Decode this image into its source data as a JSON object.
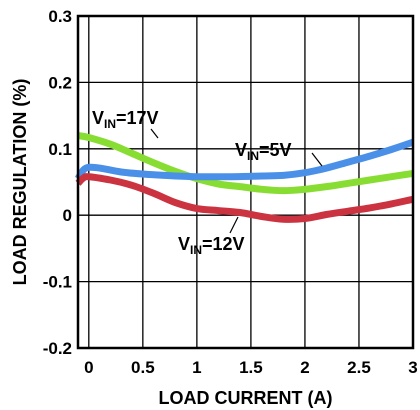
{
  "chart_data": {
    "type": "line",
    "title": "",
    "xlabel": "LOAD CURRENT (A)",
    "ylabel": "LOAD REGULATION (%)",
    "xlim": [
      -0.1,
      3.0
    ],
    "ylim": [
      -0.2,
      0.3
    ],
    "xticks": [
      0,
      0.5,
      1,
      1.5,
      2,
      2.5,
      3
    ],
    "xtick_labels": [
      "0",
      "0.5",
      "1",
      "1.5",
      "2",
      "2.5",
      "3"
    ],
    "yticks": [
      -0.2,
      -0.1,
      0,
      0.1,
      0.2,
      0.3
    ],
    "ytick_labels": [
      "-0.2",
      "-0.1",
      "0",
      "0.1",
      "0.2",
      "0.3"
    ],
    "grid": true,
    "legend": "none",
    "series": [
      {
        "name": "VIN=17V",
        "label_main": "V",
        "label_sub": "IN",
        "label_rest": "=17V",
        "color": "#88dd33",
        "x": [
          -0.1,
          0.0,
          0.2,
          0.4,
          0.6,
          0.8,
          1.0,
          1.2,
          1.4,
          1.6,
          1.8,
          2.0,
          2.2,
          2.4,
          2.6,
          2.8,
          3.0
        ],
        "y": [
          0.12,
          0.117,
          0.107,
          0.093,
          0.079,
          0.066,
          0.055,
          0.047,
          0.043,
          0.039,
          0.037,
          0.039,
          0.043,
          0.048,
          0.053,
          0.058,
          0.063
        ]
      },
      {
        "name": "VIN=5V",
        "label_main": "V",
        "label_sub": "IN",
        "label_rest": "=5V",
        "color": "#4a90e8",
        "x": [
          -0.1,
          -0.05,
          0.0,
          0.1,
          0.3,
          0.5,
          0.7,
          1.0,
          1.3,
          1.6,
          1.8,
          2.0,
          2.2,
          2.4,
          2.6,
          2.8,
          3.0
        ],
        "y": [
          0.055,
          0.068,
          0.072,
          0.071,
          0.065,
          0.062,
          0.06,
          0.058,
          0.058,
          0.059,
          0.06,
          0.064,
          0.071,
          0.08,
          0.089,
          0.099,
          0.11
        ]
      },
      {
        "name": "VIN=12V",
        "label_main": "V",
        "label_sub": "IN",
        "label_rest": "=12V",
        "color": "#cc3340",
        "x": [
          -0.1,
          -0.05,
          0.0,
          0.2,
          0.4,
          0.6,
          0.8,
          1.0,
          1.2,
          1.4,
          1.6,
          1.8,
          2.0,
          2.2,
          2.4,
          2.6,
          2.8,
          3.0
        ],
        "y": [
          0.048,
          0.056,
          0.058,
          0.053,
          0.045,
          0.033,
          0.019,
          0.01,
          0.007,
          0.004,
          -0.002,
          -0.006,
          -0.005,
          0.001,
          0.006,
          0.011,
          0.017,
          0.024
        ]
      }
    ]
  }
}
